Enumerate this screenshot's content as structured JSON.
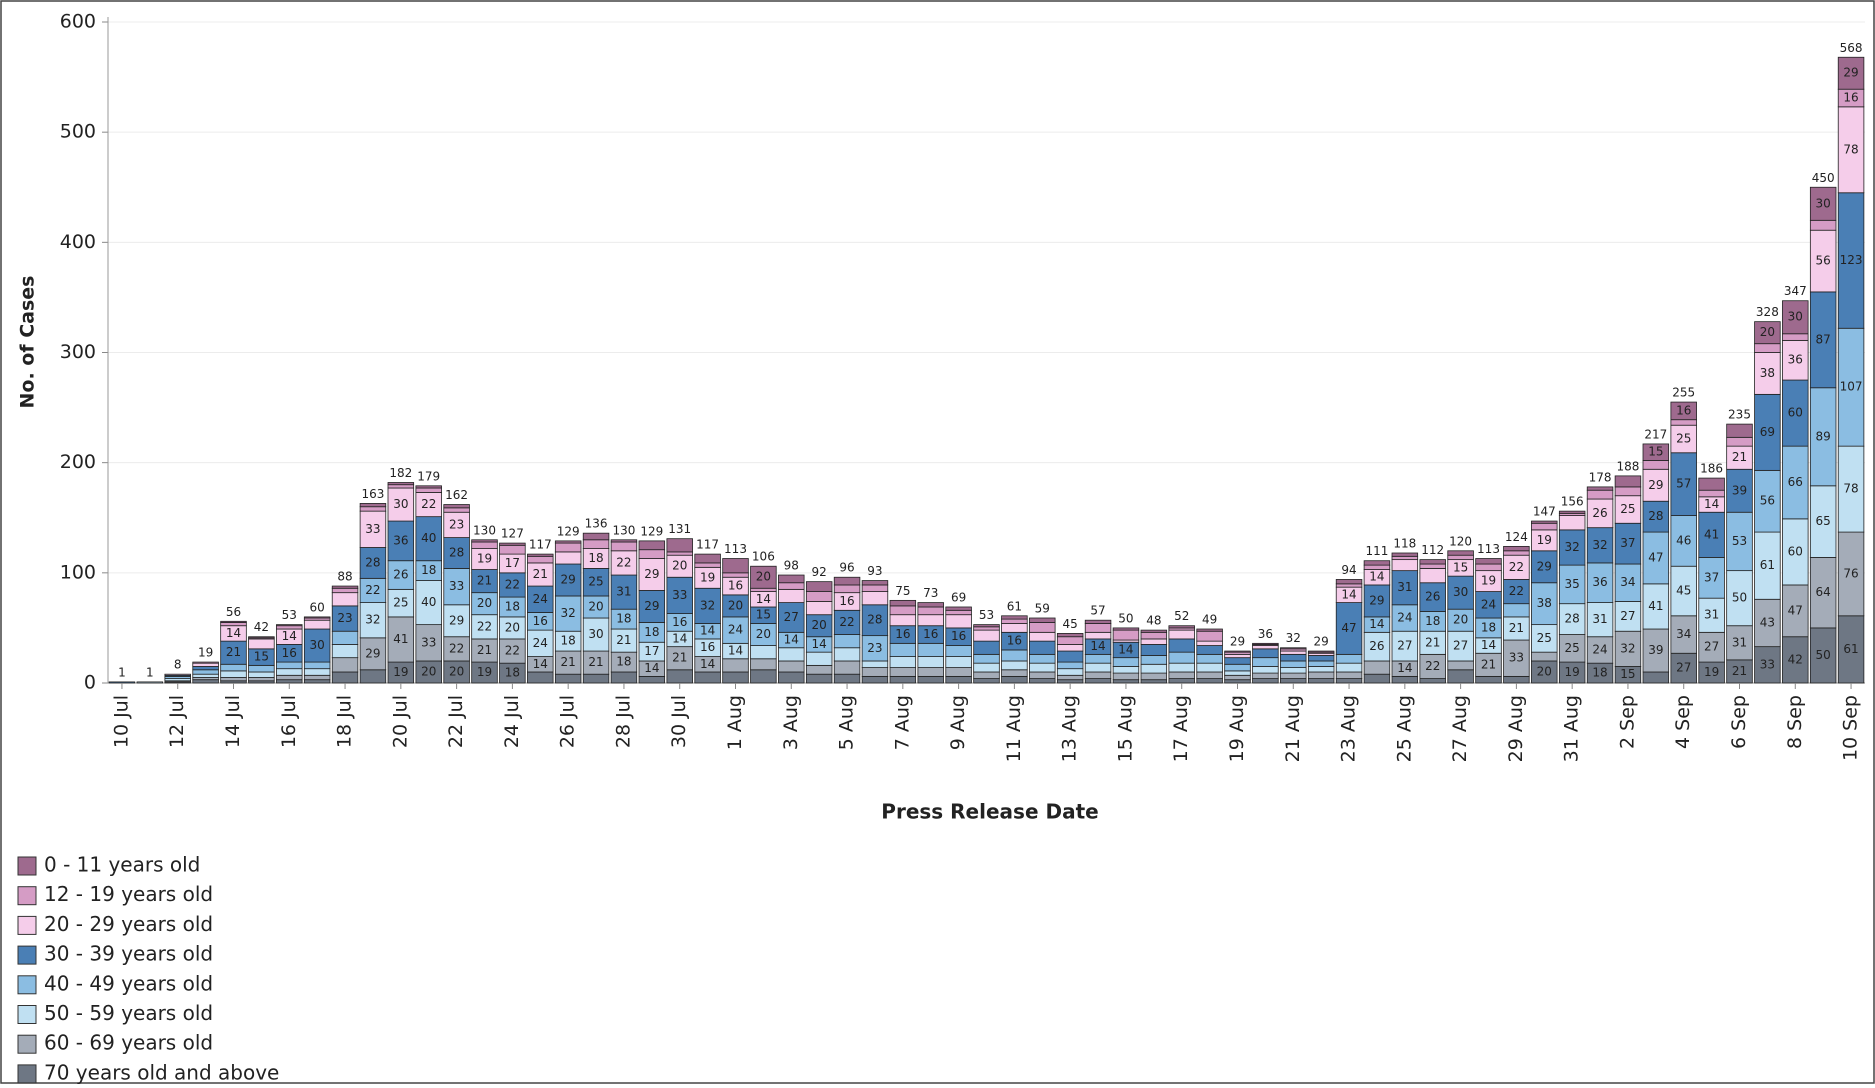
{
  "chart_data": {
    "type": "stacked-bar",
    "y_label": "No. of Cases",
    "x_label": "Press Release Date",
    "categories": [
      "10 Jul",
      null,
      "12 Jul",
      null,
      "14 Jul",
      null,
      "16 Jul",
      null,
      "18 Jul",
      null,
      "20 Jul",
      null,
      "22 Jul",
      null,
      "24 Jul",
      null,
      "26 Jul",
      null,
      "28 Jul",
      null,
      "30 Jul",
      null,
      "1 Aug",
      null,
      "3 Aug",
      null,
      "5 Aug",
      null,
      "7 Aug",
      null,
      "9 Aug",
      null,
      "11 Aug",
      null,
      "13 Aug",
      null,
      "15 Aug",
      null,
      "17 Aug",
      null,
      "19 Aug",
      null,
      "21 Aug",
      null,
      "23 Aug",
      null,
      "25 Aug",
      null,
      "27 Aug",
      null,
      "29 Aug",
      null,
      "31 Aug",
      null,
      "2 Sep",
      null,
      "4 Sep",
      null,
      "6 Sep",
      null,
      "8 Sep",
      null,
      "10 Sep"
    ],
    "series": [
      {
        "name": "0 - 11 years old",
        "color": "#9e6a8e",
        "values": [
          0,
          0,
          0,
          0,
          1,
          1,
          1,
          1,
          2,
          3,
          2,
          2,
          3,
          2,
          2,
          2,
          2,
          6,
          2,
          8,
          12,
          8,
          13,
          20,
          7,
          9,
          7,
          4,
          5,
          4,
          3,
          2,
          3,
          4,
          3,
          3,
          2,
          2,
          2,
          2,
          1,
          1,
          1,
          1,
          4,
          4,
          3,
          4,
          4,
          5,
          4,
          2,
          2,
          3,
          10,
          15,
          16,
          11,
          12,
          20,
          30,
          30,
          29
        ]
      },
      {
        "name": "12 - 19 years old",
        "color": "#d59cc5",
        "values": [
          0,
          0,
          0,
          1,
          3,
          1,
          3,
          2,
          4,
          4,
          3,
          4,
          4,
          6,
          8,
          6,
          8,
          8,
          8,
          8,
          3,
          4,
          4,
          3,
          6,
          9,
          7,
          6,
          8,
          7,
          4,
          3,
          4,
          9,
          7,
          8,
          9,
          6,
          2,
          9,
          2,
          1,
          2,
          1,
          3,
          4,
          3,
          4,
          4,
          6,
          4,
          6,
          2,
          8,
          8,
          8,
          5,
          6,
          8,
          8,
          6,
          9,
          16
        ]
      },
      {
        "name": "20 - 29 years old",
        "color": "#f5cdea",
        "values": [
          0,
          0,
          1,
          3,
          14,
          9,
          14,
          8,
          12,
          33,
          30,
          22,
          23,
          19,
          17,
          21,
          11,
          18,
          22,
          29,
          20,
          19,
          16,
          14,
          12,
          12,
          16,
          12,
          10,
          10,
          12,
          10,
          8,
          8,
          6,
          6,
          2,
          5,
          8,
          4,
          3,
          3,
          3,
          2,
          14,
          14,
          10,
          13,
          15,
          19,
          22,
          19,
          13,
          26,
          25,
          29,
          25,
          14,
          21,
          38,
          36,
          56,
          78
        ]
      },
      {
        "name": "30 - 39 years old",
        "color": "#4a7fb5",
        "values": [
          1,
          0,
          1,
          3,
          21,
          15,
          16,
          30,
          23,
          28,
          36,
          40,
          28,
          21,
          22,
          24,
          29,
          25,
          31,
          29,
          33,
          32,
          20,
          15,
          27,
          20,
          22,
          28,
          16,
          16,
          16,
          12,
          16,
          12,
          10,
          14,
          14,
          10,
          12,
          8,
          6,
          8,
          6,
          5,
          47,
          29,
          31,
          26,
          30,
          24,
          22,
          29,
          32,
          32,
          37,
          28,
          57,
          41,
          39,
          69,
          60,
          87,
          123
        ]
      },
      {
        "name": "40 - 49 years old",
        "color": "#8bbde2",
        "values": [
          0,
          0,
          2,
          4,
          6,
          6,
          6,
          6,
          12,
          22,
          26,
          18,
          33,
          20,
          18,
          16,
          32,
          20,
          18,
          18,
          16,
          14,
          24,
          20,
          14,
          14,
          12,
          23,
          12,
          12,
          10,
          8,
          10,
          8,
          6,
          8,
          8,
          8,
          10,
          8,
          6,
          8,
          6,
          5,
          8,
          14,
          24,
          18,
          20,
          18,
          12,
          38,
          35,
          36,
          34,
          47,
          46,
          37,
          53,
          56,
          66,
          89,
          107
        ]
      },
      {
        "name": "50 - 59 years old",
        "color": "#c0e0f2",
        "values": [
          0,
          1,
          2,
          3,
          6,
          5,
          6,
          6,
          12,
          32,
          25,
          40,
          29,
          22,
          20,
          24,
          18,
          30,
          21,
          17,
          14,
          16,
          14,
          12,
          12,
          12,
          12,
          6,
          10,
          10,
          10,
          8,
          8,
          8,
          6,
          8,
          6,
          8,
          8,
          8,
          4,
          6,
          5,
          5,
          8,
          26,
          27,
          21,
          27,
          14,
          21,
          25,
          28,
          31,
          27,
          41,
          45,
          31,
          50,
          61,
          60,
          65,
          78
        ]
      },
      {
        "name": "60 - 69 years old",
        "color": "#a4acb8",
        "values": [
          0,
          0,
          1,
          2,
          3,
          3,
          4,
          4,
          13,
          29,
          41,
          33,
          22,
          21,
          22,
          14,
          21,
          21,
          18,
          14,
          21,
          14,
          12,
          10,
          10,
          8,
          12,
          8,
          8,
          8,
          8,
          6,
          6,
          6,
          4,
          6,
          6,
          6,
          6,
          6,
          4,
          5,
          5,
          6,
          6,
          12,
          14,
          22,
          8,
          21,
          33,
          8,
          25,
          24,
          32,
          39,
          34,
          27,
          31,
          43,
          47,
          64,
          76
        ]
      },
      {
        "name": "70 years old and above",
        "color": "#6e7784",
        "values": [
          0,
          0,
          1,
          3,
          2,
          2,
          3,
          3,
          10,
          12,
          19,
          20,
          20,
          19,
          18,
          10,
          8,
          8,
          10,
          6,
          12,
          10,
          10,
          12,
          10,
          8,
          8,
          6,
          6,
          6,
          6,
          4,
          6,
          4,
          3,
          4,
          3,
          3,
          4,
          4,
          3,
          4,
          4,
          4,
          4,
          8,
          6,
          4,
          12,
          6,
          6,
          20,
          19,
          18,
          15,
          10,
          27,
          19,
          21,
          33,
          42,
          50,
          61
        ]
      }
    ],
    "totals": [
      1,
      1,
      8,
      19,
      56,
      42,
      53,
      60,
      88,
      163,
      182,
      179,
      162,
      130,
      127,
      117,
      129,
      136,
      130,
      129,
      131,
      117,
      113,
      106,
      98,
      92,
      96,
      93,
      75,
      73,
      69,
      53,
      61,
      59,
      45,
      57,
      50,
      48,
      52,
      49,
      29,
      36,
      32,
      29,
      94,
      111,
      118,
      112,
      120,
      113,
      124,
      147,
      156,
      178,
      188,
      217,
      255,
      186,
      235,
      328,
      347,
      450,
      568
    ],
    "ylim": [
      0,
      600
    ],
    "yticks": [
      0,
      100,
      200,
      300,
      400,
      500,
      600
    ],
    "grid": true,
    "legend": "bottom-left"
  }
}
